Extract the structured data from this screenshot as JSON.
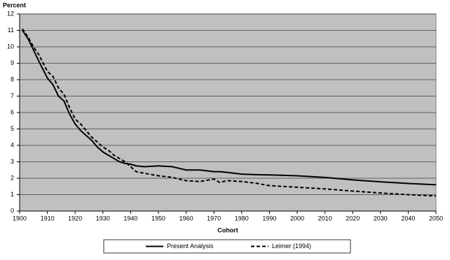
{
  "chart_data": {
    "type": "line",
    "y_label": "Percent",
    "x_label": "Cohort",
    "x": [
      1901,
      1903,
      1905,
      1907,
      1910,
      1912,
      1914,
      1916,
      1918,
      1920,
      1922,
      1924,
      1926,
      1928,
      1930,
      1932,
      1934,
      1936,
      1938,
      1940,
      1942,
      1945,
      1950,
      1955,
      1960,
      1965,
      1970,
      1972,
      1975,
      1980,
      1985,
      1990,
      2000,
      2010,
      2020,
      2030,
      2040,
      2050
    ],
    "series": [
      {
        "name": "Present Analysis",
        "color": "#000000",
        "dash": "solid",
        "values": [
          11.0,
          10.5,
          9.8,
          9.1,
          8.1,
          7.7,
          7.0,
          6.7,
          5.9,
          5.3,
          4.9,
          4.6,
          4.3,
          3.9,
          3.6,
          3.4,
          3.2,
          3.0,
          2.9,
          2.85,
          2.75,
          2.7,
          2.75,
          2.7,
          2.5,
          2.5,
          2.4,
          2.4,
          2.35,
          2.25,
          2.22,
          2.2,
          2.15,
          2.05,
          1.9,
          1.78,
          1.68,
          1.6
        ]
      },
      {
        "name": "Leimer (1994)",
        "color": "#000000",
        "dash": "dashed",
        "values": [
          11.1,
          10.6,
          10.0,
          9.5,
          8.5,
          8.2,
          7.5,
          7.1,
          6.3,
          5.6,
          5.3,
          4.9,
          4.5,
          4.2,
          3.9,
          3.7,
          3.4,
          3.2,
          3.0,
          2.7,
          2.4,
          2.3,
          2.15,
          2.05,
          1.85,
          1.8,
          1.95,
          1.75,
          1.85,
          1.8,
          1.7,
          1.55,
          1.45,
          1.35,
          1.22,
          1.1,
          1.0,
          0.92
        ]
      }
    ],
    "xlim": [
      1900,
      2050
    ],
    "xticks": [
      1900,
      1910,
      1920,
      1930,
      1940,
      1950,
      1960,
      1970,
      1980,
      1990,
      2000,
      2010,
      2020,
      2030,
      2040,
      2050
    ],
    "ylim": [
      0,
      12
    ],
    "yticks": [
      0,
      1,
      2,
      3,
      4,
      5,
      6,
      7,
      8,
      9,
      10,
      11,
      12
    ],
    "grid": true,
    "plot_background": "#c0c0c0",
    "legend": "bottom"
  }
}
